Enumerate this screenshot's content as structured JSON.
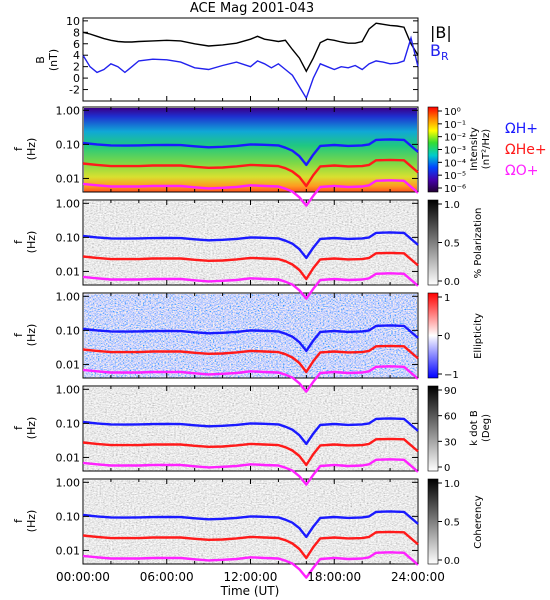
{
  "chart_data": {
    "title": "ACE Mag 2001-043",
    "x_tick_labels": [
      "00:00:00",
      "06:00:00",
      "12:00:00",
      "18:00:00",
      "24:00:00"
    ],
    "x_ticks_hours": [
      0,
      6,
      12,
      18,
      24
    ],
    "xlabel": "Time (UT)",
    "xlim_hours": [
      0,
      24
    ],
    "magnetic_field": {
      "type": "line",
      "ylabel": "B",
      "yunit": "(nT)",
      "y_ticks": [
        -2,
        0,
        2,
        4,
        6,
        8,
        10
      ],
      "ylim": [
        -4,
        10.5
      ],
      "series": [
        {
          "name": "|B|",
          "color": "#000000",
          "x": [
            0,
            0.5,
            1,
            1.5,
            2,
            2.5,
            3,
            3.5,
            4,
            5,
            6,
            7,
            8,
            9,
            10,
            11,
            12,
            12.5,
            13,
            13.5,
            14,
            14.5,
            15,
            15.5,
            16,
            16.5,
            17,
            17.5,
            18,
            18.5,
            19,
            19.5,
            20,
            20.5,
            21,
            21.5,
            22,
            22.5,
            23,
            23.5,
            24
          ],
          "y": [
            8.0,
            7.7,
            7.3,
            6.9,
            6.6,
            6.4,
            6.3,
            6.3,
            6.4,
            6.5,
            6.6,
            6.5,
            6.0,
            5.6,
            5.8,
            6.1,
            6.8,
            7.3,
            6.8,
            6.6,
            6.4,
            6.6,
            5.0,
            3.5,
            1.2,
            3.5,
            6.2,
            6.8,
            6.6,
            6.3,
            6.1,
            6.1,
            6.4,
            8.6,
            9.6,
            9.4,
            9.2,
            9.1,
            8.9,
            6.0,
            4.0
          ]
        },
        {
          "name": "B",
          "subscript": "R",
          "color": "#2222ee",
          "x": [
            0,
            0.5,
            1,
            1.5,
            2,
            2.5,
            3,
            3.5,
            4,
            5,
            6,
            7,
            8,
            9,
            10,
            11,
            12,
            12.5,
            13,
            13.5,
            14,
            14.5,
            15,
            15.5,
            16,
            16.5,
            17,
            17.5,
            18,
            18.5,
            19,
            19.5,
            20,
            20.5,
            21,
            21.5,
            22,
            22.5,
            23,
            23.5,
            24
          ],
          "y": [
            4.0,
            2.0,
            1.0,
            1.5,
            2.5,
            2.0,
            1.0,
            2.0,
            3.0,
            3.3,
            3.2,
            2.8,
            1.8,
            1.5,
            2.2,
            2.8,
            2.0,
            3.0,
            2.5,
            1.8,
            2.5,
            1.5,
            0.5,
            -1.5,
            -3.5,
            0.0,
            2.5,
            2.0,
            1.5,
            2.0,
            1.8,
            2.2,
            1.5,
            2.5,
            3.0,
            2.8,
            2.5,
            2.6,
            3.0,
            7.0,
            2.0
          ]
        }
      ]
    },
    "spectrogram_panels": [
      {
        "type": "heatmap",
        "ylabel": "f",
        "yunit": "(Hz)",
        "y_scale": "log",
        "y_tick_labels": [
          "1.00",
          "0.10",
          "0.01"
        ],
        "colorbar_labels": [
          "Intensity",
          "(nT²/Hz)"
        ],
        "colorbar_ticks": [
          "10⁰",
          "10⁻¹",
          "10⁻²",
          "10⁻³",
          "10⁻⁴",
          "10⁻⁵",
          "10⁻⁶"
        ],
        "colorscale": "rainbow",
        "legend": [
          "ΩH+",
          "ΩHe+",
          "ΩO+"
        ]
      },
      {
        "type": "heatmap",
        "ylabel": "f",
        "yunit": "(Hz)",
        "y_scale": "log",
        "y_tick_labels": [
          "1.00",
          "0.10",
          "0.01"
        ],
        "colorbar_labels": [
          "% Polarization"
        ],
        "colorbar_ticks": [
          "1.0",
          "0.5",
          "0.0"
        ],
        "colorscale": "gray"
      },
      {
        "type": "heatmap",
        "ylabel": "f",
        "yunit": "(Hz)",
        "y_scale": "log",
        "y_tick_labels": [
          "1.00",
          "0.10",
          "0.01"
        ],
        "colorbar_labels": [
          "Ellipticity"
        ],
        "colorbar_ticks": [
          "1",
          "0",
          "−1"
        ],
        "colorscale": "blue-white-red"
      },
      {
        "type": "heatmap",
        "ylabel": "f",
        "yunit": "(Hz)",
        "y_scale": "log",
        "y_tick_labels": [
          "1.00",
          "0.10",
          "0.01"
        ],
        "colorbar_labels": [
          "k dot B",
          "(Deg)"
        ],
        "colorbar_ticks": [
          "90",
          "60",
          "30",
          "0"
        ],
        "colorscale": "gray"
      },
      {
        "type": "heatmap",
        "ylabel": "f",
        "yunit": "(Hz)",
        "y_scale": "log",
        "y_tick_labels": [
          "1.00",
          "0.10",
          "0.01"
        ],
        "colorbar_labels": [
          "Coherency"
        ],
        "colorbar_ticks": [
          "1.0",
          "0.5",
          "0.0"
        ],
        "colorscale": "gray"
      }
    ],
    "gyrofrequency_lines": [
      {
        "name": "ΩH+",
        "color": "#1a1aff",
        "x": [
          0,
          1,
          2,
          3,
          4,
          5,
          6,
          7,
          8,
          9,
          10,
          11,
          12,
          13,
          14,
          14.5,
          15,
          15.5,
          16,
          16.5,
          17,
          18,
          19,
          20,
          20.5,
          21,
          22,
          23,
          24
        ],
        "y": [
          0.11,
          0.1,
          0.093,
          0.092,
          0.093,
          0.095,
          0.096,
          0.095,
          0.088,
          0.082,
          0.085,
          0.09,
          0.1,
          0.097,
          0.093,
          0.08,
          0.065,
          0.045,
          0.025,
          0.05,
          0.09,
          0.096,
          0.09,
          0.093,
          0.1,
          0.135,
          0.14,
          0.135,
          0.06
        ]
      },
      {
        "name": "ΩHe+",
        "color": "#ff1a1a",
        "x": [
          0,
          1,
          2,
          3,
          4,
          5,
          6,
          7,
          8,
          9,
          10,
          11,
          12,
          13,
          14,
          14.5,
          15,
          15.5,
          16,
          16.5,
          17,
          18,
          19,
          20,
          20.5,
          21,
          22,
          23,
          24
        ],
        "y": [
          0.0275,
          0.025,
          0.023,
          0.023,
          0.023,
          0.024,
          0.024,
          0.024,
          0.022,
          0.0205,
          0.021,
          0.0225,
          0.025,
          0.024,
          0.023,
          0.02,
          0.016,
          0.011,
          0.006,
          0.0125,
          0.0225,
          0.024,
          0.0225,
          0.023,
          0.025,
          0.034,
          0.035,
          0.034,
          0.015
        ]
      },
      {
        "name": "ΩO+",
        "color": "#ff22ff",
        "x": [
          0,
          1,
          2,
          3,
          4,
          5,
          6,
          7,
          8,
          9,
          10,
          11,
          12,
          13,
          14,
          14.5,
          15,
          15.5,
          16,
          16.5,
          17,
          18,
          19,
          20,
          20.5,
          21,
          22,
          23,
          24
        ],
        "y": [
          0.0069,
          0.0063,
          0.0058,
          0.0058,
          0.0058,
          0.006,
          0.006,
          0.006,
          0.0055,
          0.0051,
          0.0053,
          0.0056,
          0.0063,
          0.006,
          0.0058,
          0.005,
          0.0041,
          0.0028,
          0.0016,
          0.0031,
          0.0056,
          0.006,
          0.0056,
          0.0058,
          0.0063,
          0.0085,
          0.0088,
          0.0085,
          0.0038
        ]
      }
    ]
  }
}
